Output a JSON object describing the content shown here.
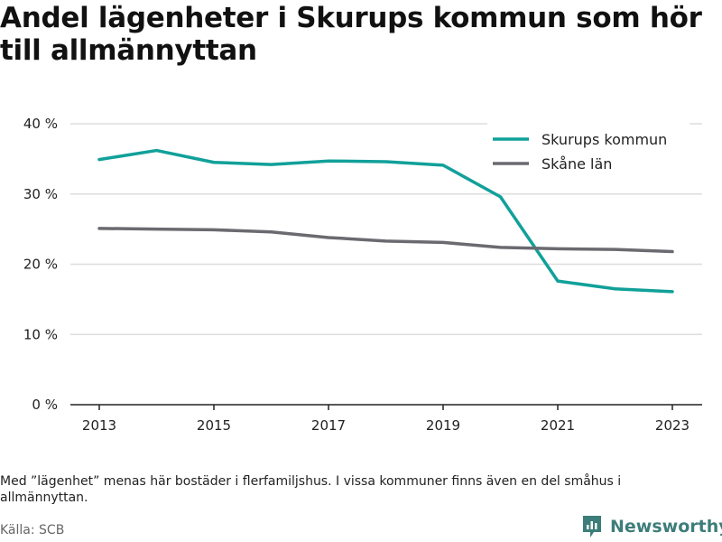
{
  "title": "Andel lägenheter i Skurups kommun som hör till allmännyttan",
  "note": "Med ”lägenhet” menas här bostäder i flerfamiljshus. I vissa kommuner finns även en del småhus i allmännyttan.",
  "source": "Källa: SCB",
  "brand": "Newsworthy",
  "chart_data": {
    "type": "line",
    "x": [
      2013,
      2014,
      2015,
      2016,
      2017,
      2018,
      2019,
      2020,
      2021,
      2022,
      2023
    ],
    "x_ticks": [
      2013,
      2015,
      2017,
      2019,
      2021,
      2023
    ],
    "y_ticks": [
      0,
      10,
      20,
      30,
      40
    ],
    "y_tick_format": "{v} %",
    "ylim": [
      0,
      40
    ],
    "grid": true,
    "legend": "top-right",
    "series": [
      {
        "name": "Skurups kommun",
        "color": "#11a09a",
        "values": [
          34.9,
          36.2,
          34.5,
          34.2,
          34.7,
          34.6,
          34.1,
          29.6,
          17.6,
          16.5,
          16.1
        ]
      },
      {
        "name": "Skåne län",
        "color": "#6a6a70",
        "values": [
          25.1,
          25.0,
          24.9,
          24.6,
          23.8,
          23.3,
          23.1,
          22.4,
          22.2,
          22.1,
          21.8
        ]
      }
    ]
  }
}
